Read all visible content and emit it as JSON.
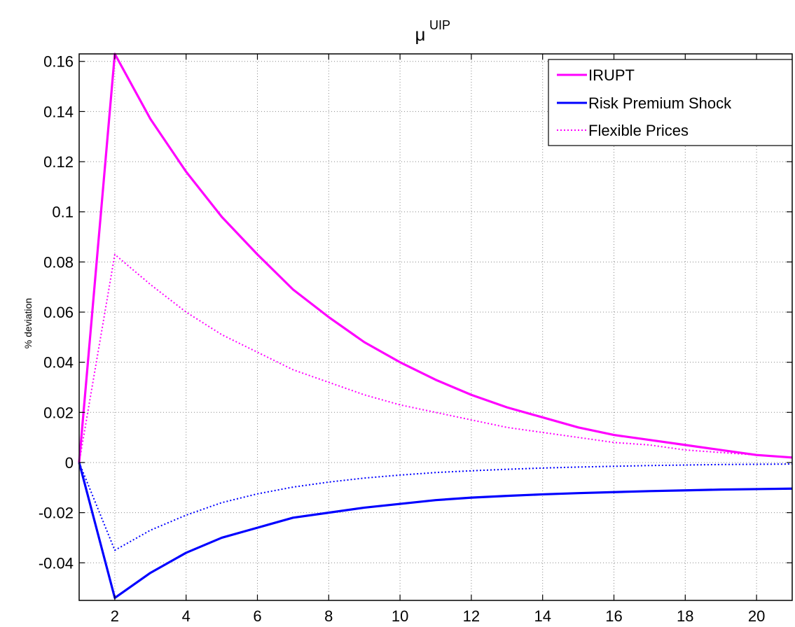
{
  "chart_data": {
    "type": "line",
    "title": {
      "main": "μ",
      "superscript": "UIP"
    },
    "xlabel": "",
    "ylabel": "% deviation",
    "xlim": [
      1,
      21
    ],
    "ylim": [
      -0.055,
      0.163
    ],
    "x_ticks": [
      2,
      4,
      6,
      8,
      10,
      12,
      14,
      16,
      18,
      20
    ],
    "y_ticks": [
      -0.04,
      -0.02,
      0,
      0.02,
      0.04,
      0.06,
      0.08,
      0.1,
      0.12,
      0.14,
      0.16
    ],
    "y_tick_labels": [
      "-0.04",
      "-0.02",
      "0",
      "0.02",
      "0.04",
      "0.06",
      "0.08",
      "0.1",
      "0.12",
      "0.14",
      "0.16"
    ],
    "grid": true,
    "legend_position": "top-right",
    "legend": [
      {
        "label": "IRUPT",
        "color": "#ff00ff",
        "style": "solid"
      },
      {
        "label": "Risk Premium Shock",
        "color": "#0000ff",
        "style": "solid"
      },
      {
        "label": "Flexible Prices",
        "color": "#ff00ff",
        "style": "dotted"
      }
    ],
    "x": [
      1,
      2,
      3,
      4,
      5,
      6,
      7,
      8,
      9,
      10,
      11,
      12,
      13,
      14,
      15,
      16,
      17,
      18,
      19,
      20,
      21
    ],
    "series": [
      {
        "name": "IRUPT",
        "color": "#ff00ff",
        "style": "solid",
        "values": [
          0,
          0.163,
          0.137,
          0.116,
          0.098,
          0.083,
          0.069,
          0.058,
          0.048,
          0.04,
          0.033,
          0.027,
          0.022,
          0.018,
          0.014,
          0.011,
          0.009,
          0.007,
          0.005,
          0.003,
          0.002
        ]
      },
      {
        "name": "Flexible Prices",
        "color": "#ff00ff",
        "style": "dotted",
        "values": [
          0,
          0.083,
          0.071,
          0.06,
          0.051,
          0.044,
          0.037,
          0.032,
          0.027,
          0.023,
          0.02,
          0.017,
          0.014,
          0.012,
          0.01,
          0.008,
          0.007,
          0.005,
          0.004,
          0.003,
          0.002
        ]
      },
      {
        "name": "Risk Premium Shock",
        "color": "#0000ff",
        "style": "solid",
        "values": [
          0,
          -0.054,
          -0.044,
          -0.036,
          -0.03,
          -0.026,
          -0.022,
          -0.02,
          -0.018,
          -0.0165,
          -0.015,
          -0.014,
          -0.0133,
          -0.0127,
          -0.0122,
          -0.0118,
          -0.0114,
          -0.0111,
          -0.0108,
          -0.0106,
          -0.0104
        ]
      },
      {
        "name": "Flexible Prices",
        "color": "#0000ff",
        "style": "dotted",
        "values": [
          0,
          -0.035,
          -0.027,
          -0.021,
          -0.016,
          -0.0125,
          -0.0098,
          -0.0078,
          -0.0062,
          -0.005,
          -0.004,
          -0.0033,
          -0.0027,
          -0.0022,
          -0.0018,
          -0.0015,
          -0.0012,
          -0.001,
          -0.0008,
          -0.0007,
          -0.0006
        ]
      }
    ]
  }
}
